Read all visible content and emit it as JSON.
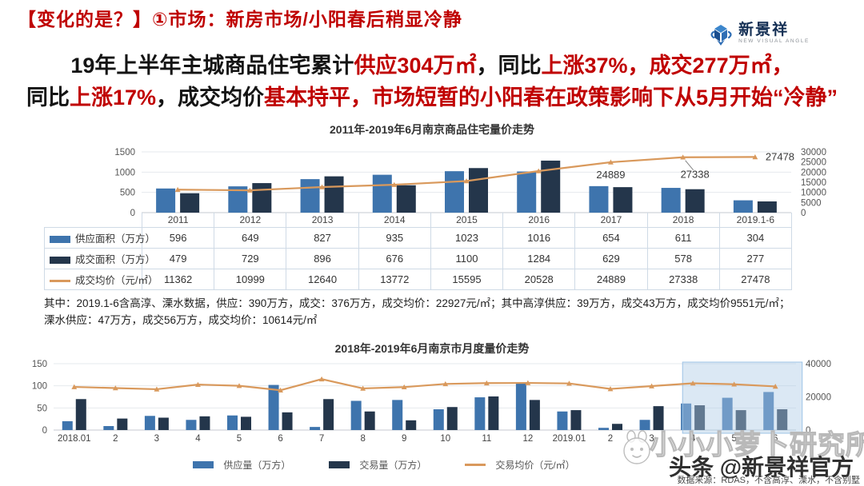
{
  "colors": {
    "accent_red": "#C00000",
    "bar_blue": "#3E74AD",
    "bar_navy": "#24364B",
    "line_orange": "#D9995C",
    "highlight_fill": "#BDD7EE"
  },
  "header": {
    "title": "【变化的是？】①市场：新房市场/小阳春后稍显冷静"
  },
  "logo": {
    "name": "新景祥",
    "tagline": "NEW VISUAL ANGLE"
  },
  "subtitle": {
    "lines": [
      [
        {
          "text": "19年上半年主城商品住宅累计",
          "red": false
        },
        {
          "text": "供应304万㎡",
          "red": true
        },
        {
          "text": "，同比",
          "red": false
        },
        {
          "text": "上涨37%，成交277万㎡，",
          "red": true
        }
      ],
      [
        {
          "text": "同比",
          "red": false
        },
        {
          "text": "上涨17%",
          "red": true
        },
        {
          "text": "，成交均价",
          "red": false
        },
        {
          "text": "基本持平，市场短暂的小阳春在政策影响下从5月开始“冷静”",
          "red": true
        }
      ]
    ]
  },
  "chart_data": [
    {
      "type": "bar+line",
      "title": "2011年-2019年6月南京商品住宅量价走势",
      "categories": [
        "2011",
        "2012",
        "2013",
        "2014",
        "2015",
        "2016",
        "2017",
        "2018",
        "2019.1-6"
      ],
      "series": [
        {
          "name": "供应面积（万方）",
          "chart": "bar",
          "axis": "left",
          "color": "#3E74AD",
          "values": [
            596,
            649,
            827,
            935,
            1023,
            1016,
            654,
            611,
            304
          ]
        },
        {
          "name": "成交面积（万方）",
          "chart": "bar",
          "axis": "left",
          "color": "#24364B",
          "values": [
            479,
            729,
            896,
            676,
            1100,
            1284,
            629,
            578,
            277
          ]
        },
        {
          "name": "成交均价（元/㎡）",
          "chart": "line",
          "axis": "right",
          "color": "#D9995C",
          "values": [
            11362,
            10999,
            12640,
            13772,
            15595,
            20528,
            24889,
            27338,
            27478
          ]
        }
      ],
      "left_axis": {
        "min": 0,
        "max": 1500,
        "ticks": [
          0,
          500,
          1000,
          1500
        ]
      },
      "right_axis": {
        "min": 0,
        "max": 30000,
        "ticks": [
          0,
          5000,
          10000,
          15000,
          20000,
          25000,
          30000
        ]
      },
      "point_labels": [
        {
          "index": 6,
          "text": "24889"
        },
        {
          "index": 7,
          "text": "27338"
        },
        {
          "index": 8,
          "text": "27478"
        }
      ],
      "show_x_labels": false,
      "grid": true,
      "legend_position": "table-left"
    },
    {
      "type": "bar+line",
      "title": "2018年-2019年6月南京市月度量价走势",
      "categories": [
        "2018.01",
        "2",
        "3",
        "4",
        "5",
        "6",
        "7",
        "8",
        "9",
        "10",
        "11",
        "12",
        "2019.01",
        "2",
        "3",
        "4",
        "5",
        "6"
      ],
      "series": [
        {
          "name": "供应量（万方）",
          "chart": "bar",
          "axis": "left",
          "color": "#3E74AD",
          "values": [
            20,
            9,
            32,
            23,
            33,
            102,
            7,
            66,
            68,
            47,
            74,
            108,
            42,
            5,
            23,
            60,
            73,
            86
          ]
        },
        {
          "name": "交易量（万方）",
          "chart": "bar",
          "axis": "left",
          "color": "#24364B",
          "values": [
            70,
            26,
            28,
            31,
            30,
            40,
            70,
            42,
            22,
            52,
            76,
            68,
            45,
            14,
            54,
            56,
            45,
            47
          ]
        },
        {
          "name": "交易均价（元/㎡）",
          "chart": "line",
          "axis": "right",
          "color": "#D9995C",
          "values": [
            26000,
            25300,
            24600,
            27400,
            26700,
            24000,
            30700,
            25100,
            25900,
            27800,
            28300,
            28400,
            28100,
            24800,
            26500,
            28200,
            27600,
            26300
          ]
        }
      ],
      "left_axis": {
        "min": 0,
        "max": 150,
        "ticks": [
          0,
          50,
          100,
          150
        ]
      },
      "right_axis": {
        "min": 0,
        "max": 40000,
        "ticks": [
          0,
          20000,
          40000
        ]
      },
      "highlight": {
        "from": 15,
        "to": 17
      },
      "show_x_labels": true,
      "grid": true,
      "legend_position": "bottom"
    }
  ],
  "table": {
    "years": [
      "2011",
      "2012",
      "2013",
      "2014",
      "2015",
      "2016",
      "2017",
      "2018",
      "2019.1-6"
    ],
    "rows": [
      {
        "label": "供应面积（万方）",
        "swatch": "blue",
        "values": [
          "596",
          "649",
          "827",
          "935",
          "1023",
          "1016",
          "654",
          "611",
          "304"
        ]
      },
      {
        "label": "成交面积（万方）",
        "swatch": "navy",
        "values": [
          "479",
          "729",
          "896",
          "676",
          "1100",
          "1284",
          "629",
          "578",
          "277"
        ]
      },
      {
        "label": "成交均价（元/㎡）",
        "swatch": "orange",
        "values": [
          "11362",
          "10999",
          "12640",
          "13772",
          "15595",
          "20528",
          "24889",
          "27338",
          "27478"
        ]
      }
    ]
  },
  "notes": {
    "line1": "其中：2019.1-6含高淳、溧水数据，供应：390万方，成交：376万方，成交均价：22927元/㎡；其中高淳供应：39万方，成交43万方，成交均价9551元/㎡；",
    "line2": "溧水供应：47万方，成交56万方，成交均价：10614元/㎡"
  },
  "legend2": [
    {
      "label": "供应量（万方）",
      "swatch": "blue"
    },
    {
      "label": "交易量（万方）",
      "swatch": "navy"
    },
    {
      "label": "交易均价（元/㎡）",
      "swatch": "orange"
    }
  ],
  "watermarks": {
    "studio": "小小小萝卜研究所",
    "toutiao": "头条 @新景祥官方",
    "source": "数据来源：RDAS，不含高淳、溧水，不含别墅"
  }
}
